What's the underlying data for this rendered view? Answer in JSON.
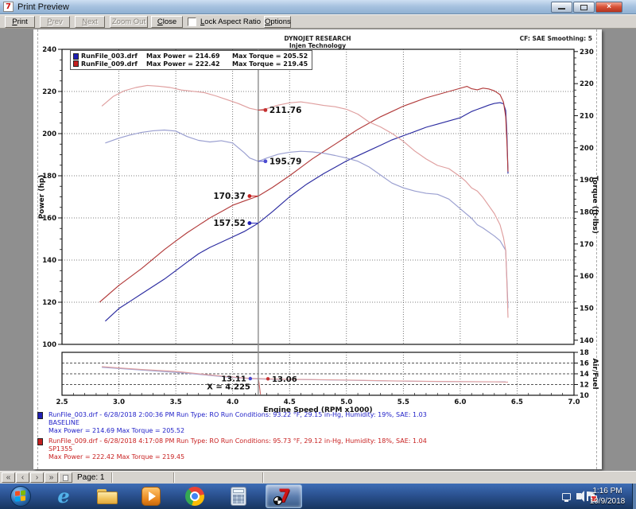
{
  "window": {
    "title": "Print Preview"
  },
  "toolbar": {
    "print": "Print",
    "prev": "Prev",
    "next": "Next",
    "zoom_out": "Zoom Out",
    "close": "Close",
    "checkbox_label": "Lock Aspect Ratio",
    "options": "Options"
  },
  "report": {
    "header_line1": "DYNOJET RESEARCH",
    "header_line2": "Injen Technology",
    "header_right": "CF: SAE  Smoothing: 5"
  },
  "legend": {
    "rows": [
      {
        "file": "RunFile_003.drf",
        "power": "Max Power = 214.69",
        "torque": "Max Torque = 205.52",
        "color": "#1f1fb4"
      },
      {
        "file": "RunFile_009.drf",
        "power": "Max Power = 222.42",
        "torque": "Max Torque = 219.45",
        "color": "#c41f1f"
      }
    ]
  },
  "cursor_x": 4.225,
  "chart_data": [
    {
      "panel": "main",
      "type": "line",
      "x_label": "Engine Speed (RPM x1000)",
      "x_range": [
        2.5,
        7.0
      ],
      "x_tick_labels": [
        "2.5",
        "3.0",
        "3.5",
        "4.0",
        "4.5",
        "5.0",
        "5.5",
        "6.0",
        "6.5",
        "7.0"
      ],
      "left_axis": {
        "label": "Power (hp)",
        "range": [
          100,
          240
        ],
        "ticks": [
          240,
          220,
          200,
          180,
          160,
          140,
          120,
          100
        ]
      },
      "right_axis": {
        "label": "Torque (ft-lbs)",
        "range": [
          138.7,
          230.7
        ],
        "ticks": [
          230,
          220,
          210,
          200,
          190,
          180,
          170,
          160,
          150,
          140
        ]
      },
      "grid": "dotted",
      "series": [
        {
          "name": "RunFile_003 Power",
          "axis": "left",
          "color": "#2b2ba0",
          "points": [
            [
              2.88,
              111
            ],
            [
              3.0,
              117
            ],
            [
              3.1,
              120.5
            ],
            [
              3.2,
              124
            ],
            [
              3.3,
              127.5
            ],
            [
              3.4,
              131
            ],
            [
              3.5,
              135
            ],
            [
              3.6,
              139
            ],
            [
              3.7,
              143
            ],
            [
              3.8,
              146
            ],
            [
              3.9,
              148.5
            ],
            [
              4.0,
              151
            ],
            [
              4.1,
              153.5
            ],
            [
              4.225,
              157.52
            ],
            [
              4.35,
              163
            ],
            [
              4.5,
              170
            ],
            [
              4.65,
              176
            ],
            [
              4.8,
              181
            ],
            [
              4.9,
              184
            ],
            [
              5.0,
              187
            ],
            [
              5.1,
              189.5
            ],
            [
              5.2,
              192
            ],
            [
              5.3,
              194.5
            ],
            [
              5.4,
              197
            ],
            [
              5.5,
              199
            ],
            [
              5.6,
              201
            ],
            [
              5.7,
              203
            ],
            [
              5.8,
              204.5
            ],
            [
              5.9,
              206
            ],
            [
              6.0,
              207.5
            ],
            [
              6.05,
              209
            ],
            [
              6.1,
              210.5
            ],
            [
              6.15,
              211.5
            ],
            [
              6.2,
              212.5
            ],
            [
              6.25,
              213.5
            ],
            [
              6.3,
              214.3
            ],
            [
              6.35,
              214.69
            ],
            [
              6.38,
              214.2
            ],
            [
              6.4,
              211
            ],
            [
              6.41,
              200
            ],
            [
              6.42,
              181
            ]
          ]
        },
        {
          "name": "RunFile_009 Power",
          "axis": "left",
          "color": "#b23b3b",
          "points": [
            [
              2.83,
              120
            ],
            [
              3.0,
              128
            ],
            [
              3.1,
              132
            ],
            [
              3.2,
              136
            ],
            [
              3.3,
              140.5
            ],
            [
              3.4,
              145
            ],
            [
              3.5,
              149
            ],
            [
              3.6,
              153
            ],
            [
              3.7,
              156.5
            ],
            [
              3.8,
              160
            ],
            [
              3.9,
              163
            ],
            [
              4.0,
              166
            ],
            [
              4.1,
              168
            ],
            [
              4.225,
              170.37
            ],
            [
              4.35,
              174.5
            ],
            [
              4.5,
              180
            ],
            [
              4.6,
              184
            ],
            [
              4.7,
              188
            ],
            [
              4.8,
              191.5
            ],
            [
              4.9,
              195
            ],
            [
              5.0,
              198.5
            ],
            [
              5.1,
              202
            ],
            [
              5.2,
              205
            ],
            [
              5.3,
              208
            ],
            [
              5.4,
              210.5
            ],
            [
              5.5,
              213
            ],
            [
              5.6,
              215
            ],
            [
              5.7,
              217
            ],
            [
              5.8,
              218.5
            ],
            [
              5.9,
              220
            ],
            [
              6.0,
              221.5
            ],
            [
              6.06,
              222.42
            ],
            [
              6.1,
              221.3
            ],
            [
              6.15,
              220.8
            ],
            [
              6.2,
              221.6
            ],
            [
              6.25,
              221.2
            ],
            [
              6.3,
              220.3
            ],
            [
              6.35,
              218.5
            ],
            [
              6.38,
              215
            ],
            [
              6.4,
              208
            ],
            [
              6.41,
              196
            ],
            [
              6.42,
              182
            ]
          ]
        },
        {
          "name": "RunFile_003 Torque",
          "axis": "right",
          "color": "#9a9fd0",
          "points": [
            [
              2.88,
              201.5
            ],
            [
              3.0,
              203
            ],
            [
              3.1,
              204
            ],
            [
              3.2,
              204.8
            ],
            [
              3.3,
              205.3
            ],
            [
              3.4,
              205.52
            ],
            [
              3.5,
              205.2
            ],
            [
              3.6,
              203.5
            ],
            [
              3.7,
              202.3
            ],
            [
              3.8,
              201.8
            ],
            [
              3.9,
              202.2
            ],
            [
              4.0,
              201.5
            ],
            [
              4.05,
              200
            ],
            [
              4.1,
              198.5
            ],
            [
              4.15,
              196.8
            ],
            [
              4.225,
              195.79
            ],
            [
              4.3,
              196.8
            ],
            [
              4.4,
              198
            ],
            [
              4.5,
              198.6
            ],
            [
              4.6,
              198.9
            ],
            [
              4.7,
              198.7
            ],
            [
              4.8,
              198.3
            ],
            [
              4.9,
              197.6
            ],
            [
              5.0,
              196.8
            ],
            [
              5.1,
              195.8
            ],
            [
              5.2,
              194
            ],
            [
              5.3,
              191.5
            ],
            [
              5.4,
              189
            ],
            [
              5.5,
              187.5
            ],
            [
              5.6,
              186.5
            ],
            [
              5.7,
              185.8
            ],
            [
              5.8,
              185.5
            ],
            [
              5.9,
              184
            ],
            [
              6.0,
              181
            ],
            [
              6.1,
              178
            ],
            [
              6.15,
              176
            ],
            [
              6.2,
              175
            ],
            [
              6.3,
              172.5
            ],
            [
              6.35,
              171
            ],
            [
              6.4,
              168
            ],
            [
              6.41,
              159
            ],
            [
              6.42,
              150
            ]
          ]
        },
        {
          "name": "RunFile_009 Torque",
          "axis": "right",
          "color": "#df9e9e",
          "points": [
            [
              2.85,
              213
            ],
            [
              2.95,
              216
            ],
            [
              3.05,
              217.8
            ],
            [
              3.15,
              218.8
            ],
            [
              3.25,
              219.45
            ],
            [
              3.35,
              219.2
            ],
            [
              3.45,
              218.8
            ],
            [
              3.55,
              218
            ],
            [
              3.65,
              217.6
            ],
            [
              3.75,
              217.2
            ],
            [
              3.85,
              216.2
            ],
            [
              3.95,
              215
            ],
            [
              4.05,
              213.8
            ],
            [
              4.15,
              212.3
            ],
            [
              4.225,
              211.76
            ],
            [
              4.3,
              212.2
            ],
            [
              4.4,
              213.3
            ],
            [
              4.5,
              214
            ],
            [
              4.6,
              214.3
            ],
            [
              4.7,
              213.8
            ],
            [
              4.8,
              213.2
            ],
            [
              4.9,
              212.8
            ],
            [
              5.0,
              212
            ],
            [
              5.1,
              210.5
            ],
            [
              5.2,
              208
            ],
            [
              5.3,
              206.5
            ],
            [
              5.4,
              204.5
            ],
            [
              5.5,
              202
            ],
            [
              5.6,
              199
            ],
            [
              5.7,
              196.5
            ],
            [
              5.8,
              194.5
            ],
            [
              5.9,
              193.5
            ],
            [
              6.0,
              191
            ],
            [
              6.05,
              189.5
            ],
            [
              6.1,
              187.5
            ],
            [
              6.15,
              186.5
            ],
            [
              6.2,
              184.5
            ],
            [
              6.25,
              182
            ],
            [
              6.3,
              179.5
            ],
            [
              6.35,
              176
            ],
            [
              6.38,
              172
            ],
            [
              6.4,
              168
            ],
            [
              6.41,
              158
            ],
            [
              6.42,
              147
            ]
          ]
        }
      ],
      "markers": [
        {
          "label": "211.76",
          "value": 211.76,
          "axis": "right",
          "color": "#c43030",
          "side": "right"
        },
        {
          "label": "195.79",
          "value": 195.79,
          "axis": "right",
          "color": "#4a4ad0",
          "side": "right"
        },
        {
          "label": "170.37",
          "value": 170.37,
          "axis": "left",
          "color": "#c41f1f",
          "side": "left"
        },
        {
          "label": "157.52",
          "value": 157.52,
          "axis": "left",
          "color": "#1f1fb4",
          "side": "left"
        }
      ]
    },
    {
      "panel": "af",
      "type": "line",
      "right_axis": {
        "label": "Air/Fuel",
        "range": [
          10,
          18
        ],
        "ticks": [
          18,
          16,
          14,
          12,
          10
        ]
      },
      "series": [
        {
          "name": "RunFile_003 Air/Fuel",
          "axis": "right",
          "color": "#a0a4d4",
          "points": [
            [
              2.85,
              15.2
            ],
            [
              3.0,
              15.0
            ],
            [
              3.2,
              14.7
            ],
            [
              3.4,
              14.4
            ],
            [
              3.6,
              14.1
            ],
            [
              3.8,
              13.7
            ],
            [
              3.95,
              13.4
            ],
            [
              4.05,
              13.25
            ],
            [
              4.15,
              13.11
            ],
            [
              4.3,
              13.0
            ],
            [
              4.5,
              12.95
            ],
            [
              4.7,
              12.9
            ],
            [
              5.0,
              12.8
            ],
            [
              5.3,
              12.7
            ],
            [
              5.6,
              12.6
            ],
            [
              5.9,
              12.55
            ],
            [
              6.2,
              12.5
            ],
            [
              6.4,
              12.5
            ]
          ]
        },
        {
          "name": "RunFile_009 Air/Fuel",
          "axis": "right",
          "color": "#e0a0a0",
          "points": [
            [
              2.85,
              15.35
            ],
            [
              3.0,
              15.1
            ],
            [
              3.2,
              14.8
            ],
            [
              3.5,
              14.45
            ],
            [
              3.8,
              13.8
            ],
            [
              4.0,
              13.4
            ],
            [
              4.15,
              13.15
            ],
            [
              4.3,
              13.06
            ],
            [
              4.5,
              12.98
            ],
            [
              4.8,
              12.9
            ],
            [
              5.1,
              12.8
            ],
            [
              5.4,
              12.68
            ],
            [
              5.7,
              12.6
            ],
            [
              6.0,
              12.55
            ],
            [
              6.3,
              12.5
            ],
            [
              6.42,
              12.45
            ]
          ]
        },
        {
          "name": "RunFile_009 Air/Fuel start-drop",
          "axis": "right",
          "color": "#d06868",
          "points": [
            [
              4.228,
              12.85
            ],
            [
              4.245,
              10.15
            ]
          ]
        }
      ],
      "markers": [
        {
          "label": "13.11",
          "value": 13.11,
          "rpm": 4.155,
          "color": "#4a4ad0",
          "side": "left"
        },
        {
          "label": "13.06",
          "value": 13.06,
          "rpm": 4.31,
          "color": "#c43030",
          "side": "right"
        }
      ],
      "cursor_label": "X = 4.225"
    }
  ],
  "footer": {
    "runs": [
      {
        "color": "#2020c8",
        "square": "#1f1fb4",
        "line1": "RunFile_003.drf - 6/28/2018 2:00:36 PM  Run Type: RO  Run Conditions: 93.22 °F, 29.15 in-Hg,  Humidity:  19%, SAE: 1.03",
        "line2": "BASELINE",
        "line3": "Max Power = 214.69  Max Torque = 205.52"
      },
      {
        "color": "#c82020",
        "square": "#c41f1f",
        "line1": "RunFile_009.drf - 6/28/2018 4:17:08 PM  Run Type: RO  Run Conditions: 95.73 °F, 29.12 in-Hg,  Humidity:  18%, SAE: 1.04",
        "line2": "SP1355",
        "line3": "Max Power = 222.42  Max Torque = 219.45"
      }
    ]
  },
  "statusbar": {
    "nav": [
      "«",
      "‹",
      "›",
      "»"
    ],
    "page_label": "Page: 1"
  },
  "taskbar": {
    "icons": [
      "start-orb",
      "internet-explorer",
      "file-explorer",
      "windows-media-player",
      "chrome",
      "calculator",
      "dynojet-winpep-active"
    ],
    "clock_time": "1:16 PM",
    "clock_date": "10/9/2018"
  }
}
